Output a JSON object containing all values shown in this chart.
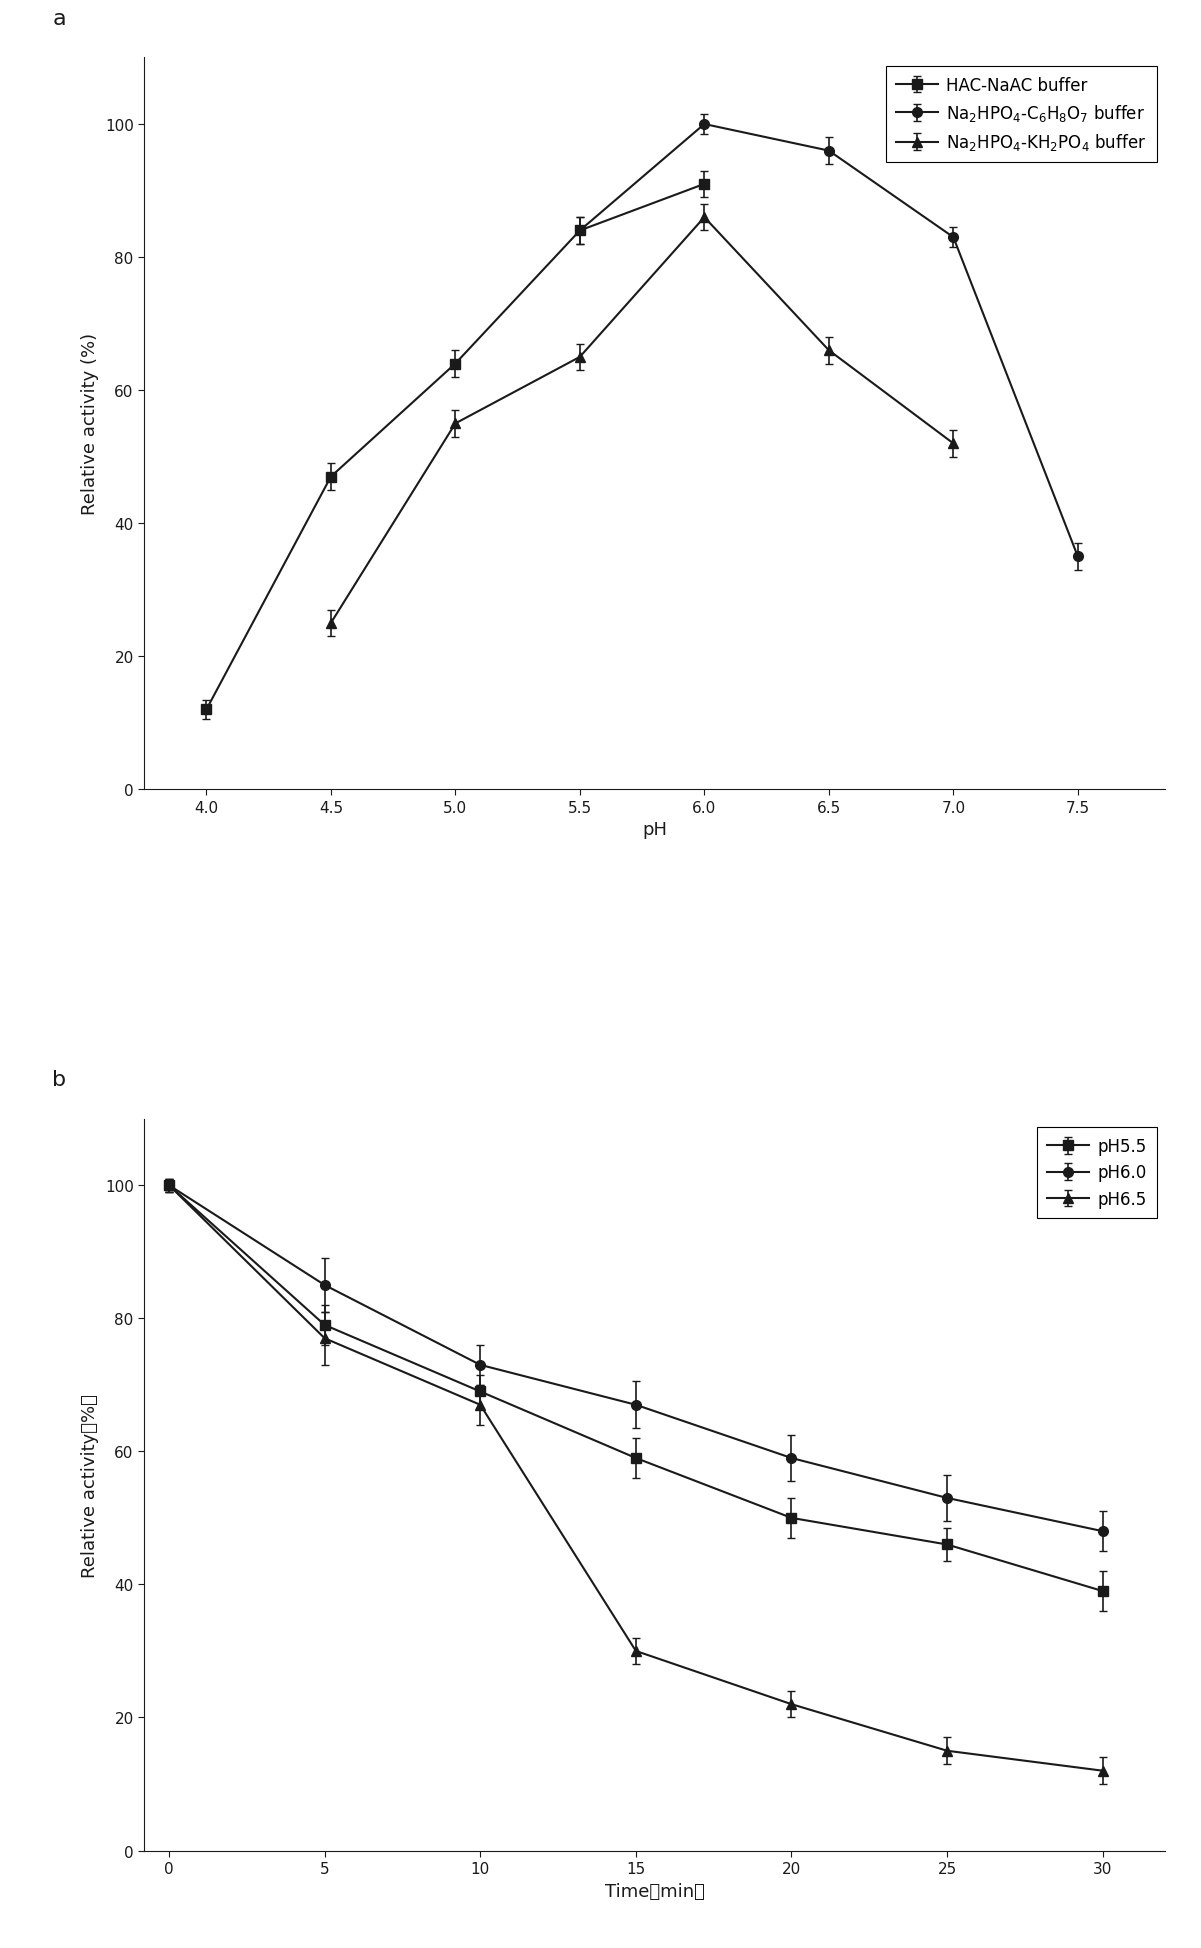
{
  "panel_a": {
    "title": "a",
    "xlabel": "pH",
    "ylabel": "Relative activity (%)",
    "xlim": [
      3.75,
      7.85
    ],
    "ylim": [
      0,
      110
    ],
    "yticks": [
      0,
      20,
      40,
      60,
      80,
      100
    ],
    "xticks": [
      4.0,
      4.5,
      5.0,
      5.5,
      6.0,
      6.5,
      7.0,
      7.5
    ],
    "series": [
      {
        "label": "HAC-NaAC buffer",
        "marker": "s",
        "x": [
          4.0,
          4.5,
          5.0,
          5.5,
          6.0
        ],
        "y": [
          12,
          47,
          64,
          84,
          91
        ],
        "yerr": [
          1.5,
          2.0,
          2.0,
          2.0,
          2.0
        ]
      },
      {
        "label": "Na$_2$HPO$_4$-C$_6$H$_8$O$_7$ buffer",
        "marker": "o",
        "x": [
          5.5,
          6.0,
          6.5,
          7.0,
          7.5
        ],
        "y": [
          84,
          100,
          96,
          83,
          35
        ],
        "yerr": [
          2.0,
          1.5,
          2.0,
          1.5,
          2.0
        ]
      },
      {
        "label": "Na$_2$HPO$_4$-KH$_2$PO$_4$ buffer",
        "marker": "^",
        "x": [
          4.5,
          5.0,
          5.5,
          6.0,
          6.5,
          7.0
        ],
        "y": [
          25,
          55,
          65,
          86,
          66,
          52
        ],
        "yerr": [
          2.0,
          2.0,
          2.0,
          2.0,
          2.0,
          2.0
        ]
      }
    ]
  },
  "panel_b": {
    "title": "b",
    "xlabel": "Time（min）",
    "ylabel": "Relative activity（%）",
    "xlim": [
      -0.8,
      32
    ],
    "ylim": [
      0,
      110
    ],
    "yticks": [
      0,
      20,
      40,
      60,
      80,
      100
    ],
    "xticks": [
      0,
      5,
      10,
      15,
      20,
      25,
      30
    ],
    "series": [
      {
        "label": "pH5.5",
        "marker": "s",
        "x": [
          0,
          5,
          10,
          15,
          20,
          25,
          30
        ],
        "y": [
          100,
          79,
          69,
          59,
          50,
          46,
          39
        ],
        "yerr": [
          1.0,
          3.0,
          2.5,
          3.0,
          3.0,
          2.5,
          3.0
        ]
      },
      {
        "label": "pH6.0",
        "marker": "o",
        "x": [
          0,
          5,
          10,
          15,
          20,
          25,
          30
        ],
        "y": [
          100,
          85,
          73,
          67,
          59,
          53,
          48
        ],
        "yerr": [
          1.0,
          4.0,
          3.0,
          3.5,
          3.5,
          3.5,
          3.0
        ]
      },
      {
        "label": "pH6.5",
        "marker": "^",
        "x": [
          0,
          5,
          10,
          15,
          20,
          25,
          30
        ],
        "y": [
          100,
          77,
          67,
          30,
          22,
          15,
          12
        ],
        "yerr": [
          1.0,
          4.0,
          3.0,
          2.0,
          2.0,
          2.0,
          2.0
        ]
      }
    ]
  },
  "color": "#1a1a1a",
  "linewidth": 1.5,
  "markersize": 7,
  "capsize": 3,
  "elinewidth": 1.2,
  "legend_fontsize": 12,
  "axis_label_fontsize": 13,
  "tick_fontsize": 11,
  "panel_label_fontsize": 16
}
